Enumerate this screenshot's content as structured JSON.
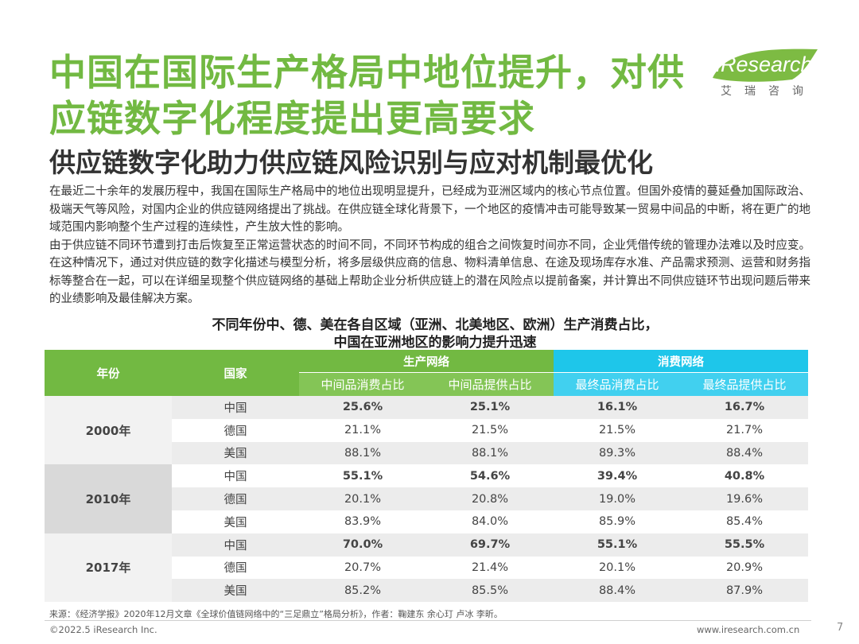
{
  "title_line1": "中国在国际生产格局中地位提升，对供",
  "title_line2": "应链数字化程度提出更高要求",
  "logo": {
    "brand": "iResearch",
    "brand_cn": "艾瑞咨询"
  },
  "subtitle": "供应链数字化助力供应链风险识别与应对机制最优化",
  "paragraph1": "在最近二十余年的发展历程中，我国在国际生产格局中的地位出现明显提升，已经成为亚洲区域内的核心节点位置。但国外疫情的蔓延叠加国际政治、极端天气等风险，对国内企业的供应链网络提出了挑战。在供应链全球化背景下，一个地区的疫情冲击可能导致某一贸易中间品的中断，将在更广的地域范围内影响整个生产过程的连续性，产生放大性的影响。",
  "paragraph2": "由于供应链不同环节遭到打击后恢复至正常运营状态的时间不同，不同环节构成的组合之间恢复时间亦不同，企业凭借传统的管理办法难以及时应变。在这种情况下，通过对供应链的数字化描述与模型分析，将多层级供应商的信息、物料清单信息、在途及现场库存水准、产品需求预测、运营和财务指标等整合在一起，可以在详细呈现整个供应链网络的基础上帮助企业分析供应链上的潜在风险点以提前备案，并计算出不同供应链环节出现问题后带来的业绩影响及最佳解决方案。",
  "table_title_line1": "不同年份中、德、美在各自区域（亚洲、北美地区、欧洲）生产消费占比，",
  "table_title_line2": "中国在亚洲地区的影响力提升迅速",
  "table": {
    "col_year": "年份",
    "col_country": "国家",
    "group_production": "生产网络",
    "group_consumption": "消费网络",
    "sub_headers": [
      "中间品消费占比",
      "中间品提供占比",
      "最终品消费占比",
      "最终品提供占比"
    ],
    "groups": [
      {
        "year": "2000年",
        "rows": [
          {
            "country": "中国",
            "values": [
              "25.6%",
              "25.1%",
              "16.1%",
              "16.7%"
            ]
          },
          {
            "country": "德国",
            "values": [
              "21.1%",
              "21.5%",
              "21.5%",
              "21.7%"
            ]
          },
          {
            "country": "美国",
            "values": [
              "88.1%",
              "88.1%",
              "89.3%",
              "88.4%"
            ]
          }
        ]
      },
      {
        "year": "2010年",
        "rows": [
          {
            "country": "中国",
            "values": [
              "55.1%",
              "54.6%",
              "39.4%",
              "40.8%"
            ]
          },
          {
            "country": "德国",
            "values": [
              "20.1%",
              "20.8%",
              "19.0%",
              "19.6%"
            ]
          },
          {
            "country": "美国",
            "values": [
              "83.9%",
              "84.0%",
              "85.9%",
              "85.4%"
            ]
          }
        ]
      },
      {
        "year": "2017年",
        "rows": [
          {
            "country": "中国",
            "values": [
              "70.0%",
              "69.7%",
              "55.1%",
              "55.5%"
            ]
          },
          {
            "country": "德国",
            "values": [
              "20.7%",
              "21.4%",
              "20.1%",
              "20.9%"
            ]
          },
          {
            "country": "美国",
            "values": [
              "85.2%",
              "85.5%",
              "88.4%",
              "87.9%"
            ]
          }
        ]
      }
    ]
  },
  "source": "来源：《经济学报》2020年12月文章《全球价值链网络中的“三足鼎立”格局分析》，作者：鞠建东 余心玎 卢冰 李昕。",
  "footer_left": "©2022.5 iResearch Inc.",
  "footer_right": "www.iresearch.com.cn",
  "page_number": "7",
  "colors": {
    "green": "#72b942",
    "cyan": "#1ec6ea"
  }
}
